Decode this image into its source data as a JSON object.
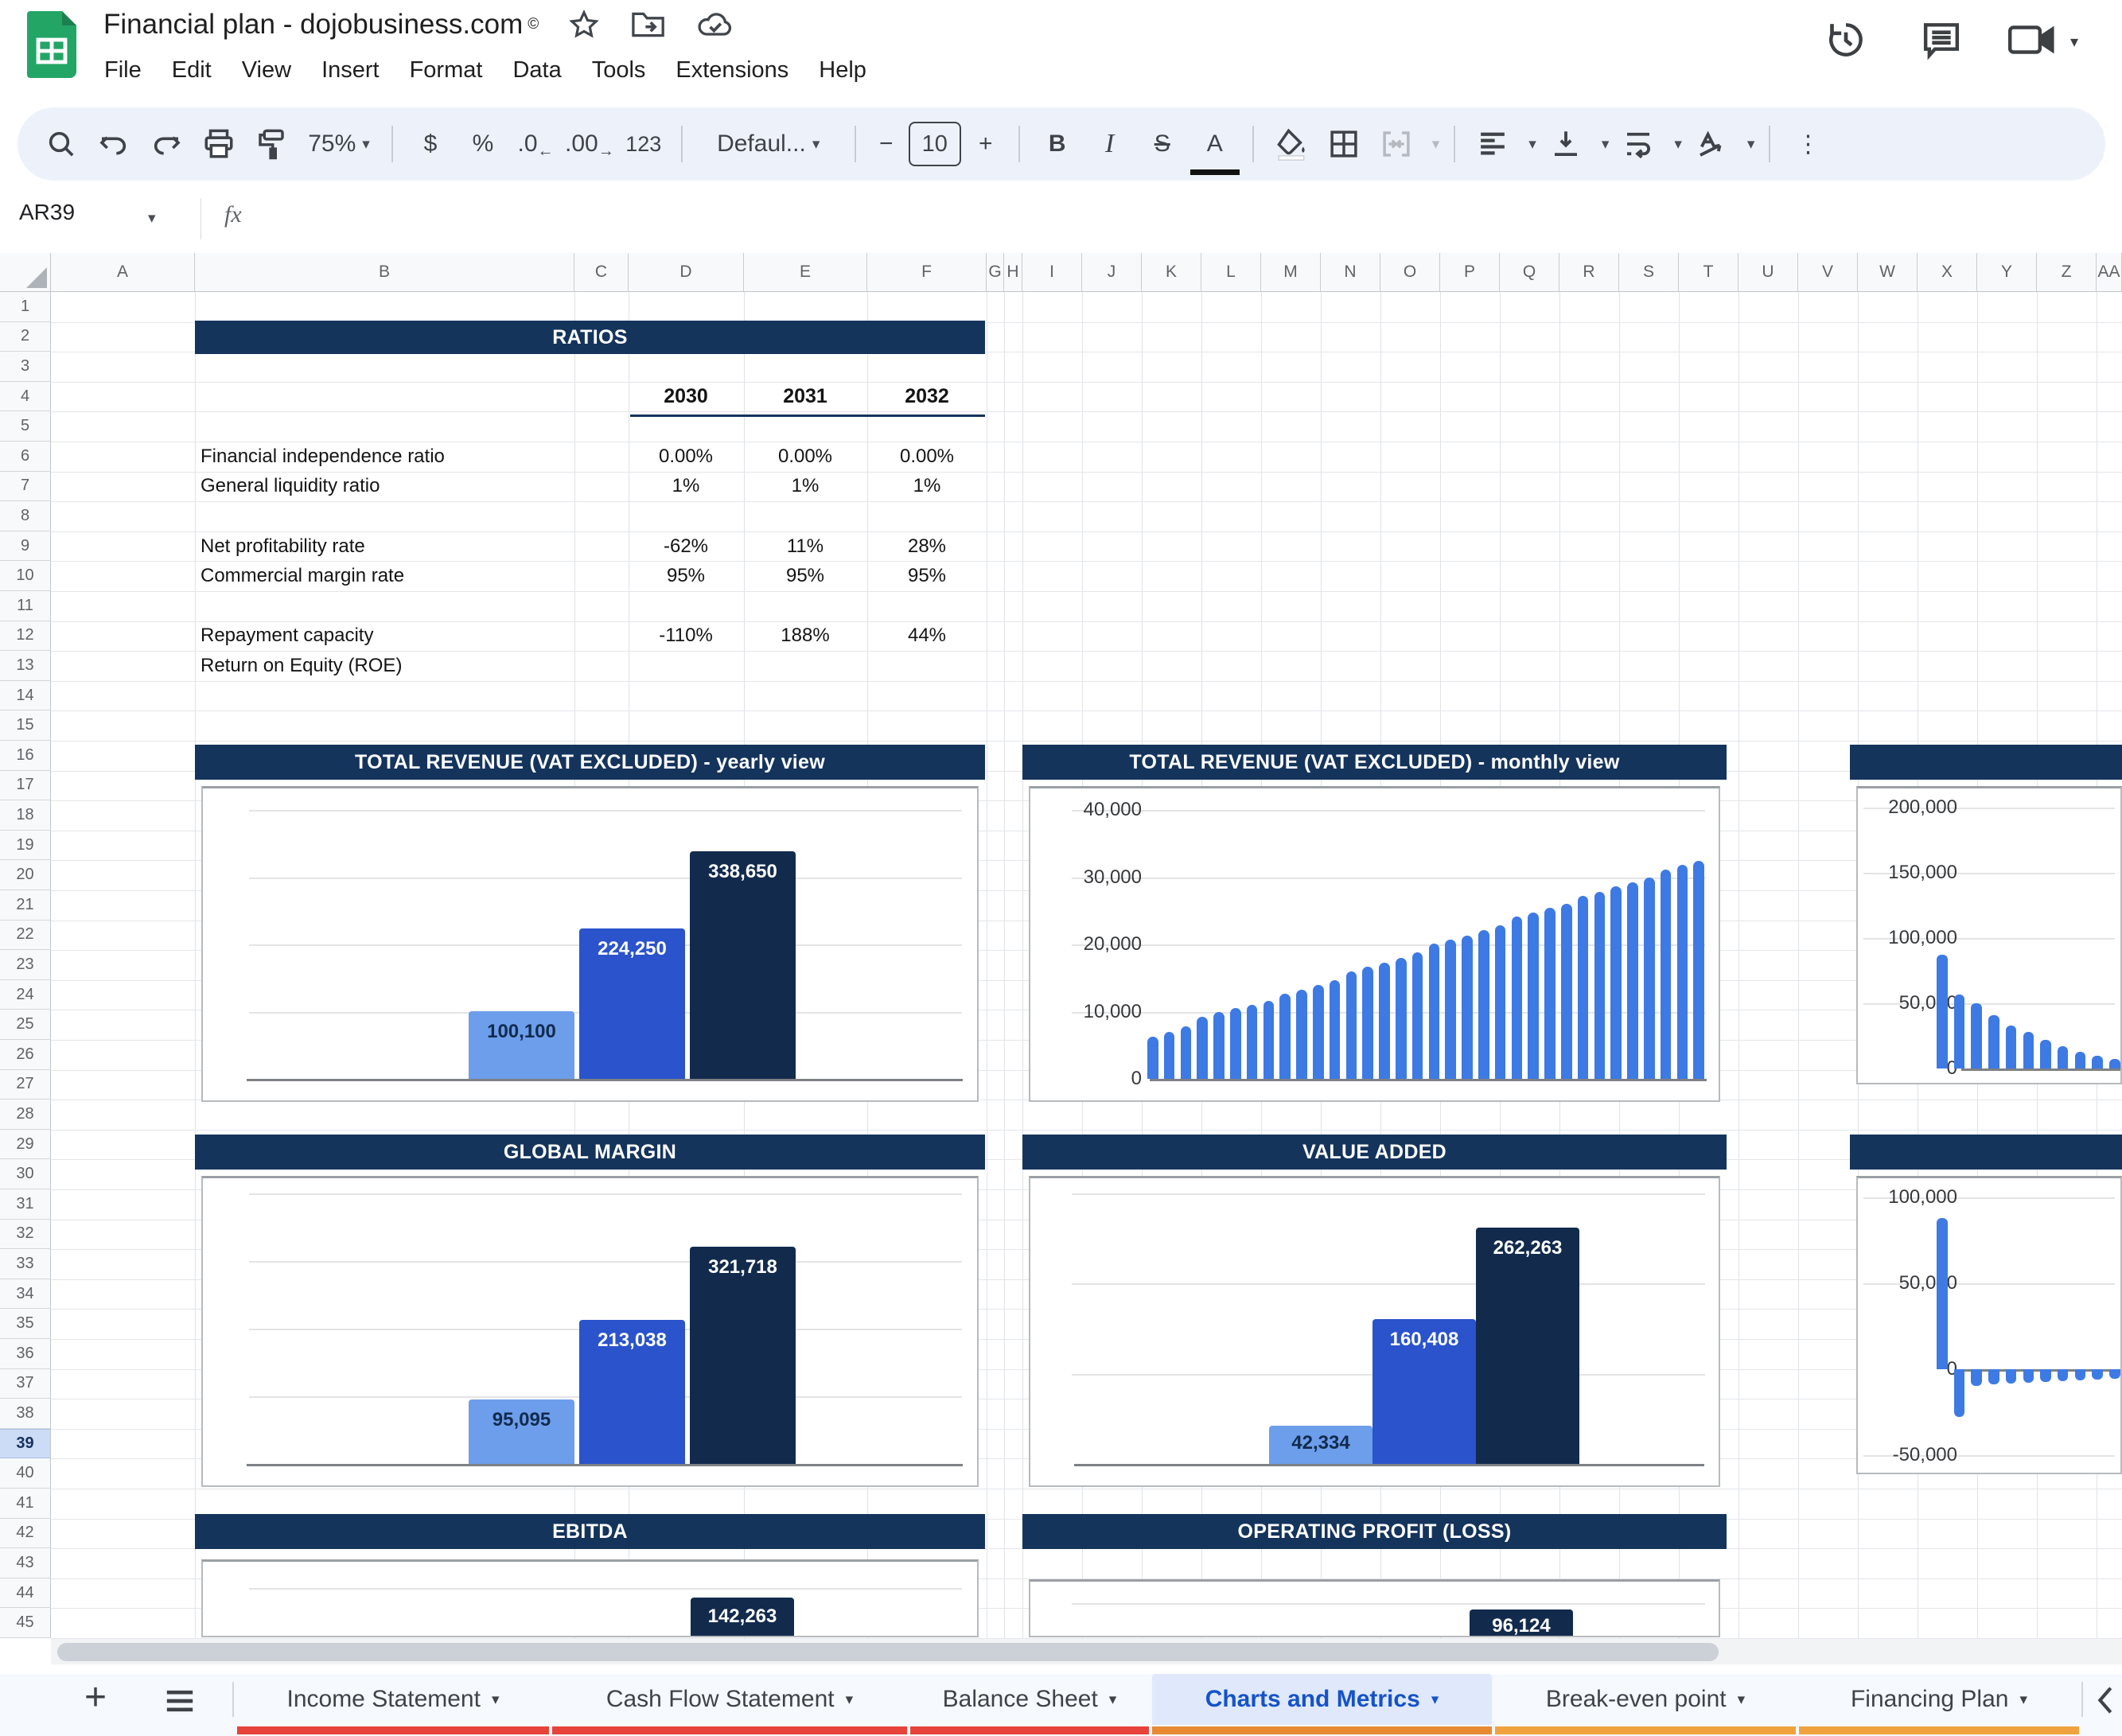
{
  "titlebar": {
    "title": "Financial plan - dojobusiness.com",
    "copyright": "©",
    "menus": [
      "File",
      "Edit",
      "View",
      "Insert",
      "Format",
      "Data",
      "Tools",
      "Extensions",
      "Help"
    ]
  },
  "toolbar": {
    "zoom": "75%",
    "currency": "$",
    "percent": "%",
    "decrease_decimal": ".0",
    "increase_decimal": ".00",
    "format_123": "123",
    "font": "Defaul...",
    "font_size": "10",
    "minus": "−",
    "plus": "+",
    "bold": "B",
    "italic": "I",
    "strikethrough": "S",
    "text_color": "A",
    "fill_color": "A",
    "more": "⋮"
  },
  "formula_bar": {
    "name_box": "AR39",
    "fx": "fx"
  },
  "grid": {
    "columns": [
      "A",
      "B",
      "C",
      "D",
      "E",
      "F",
      "G",
      "H",
      "I",
      "J",
      "K",
      "L",
      "M",
      "N",
      "O",
      "P",
      "Q",
      "R",
      "S",
      "T",
      "U",
      "V",
      "W",
      "X",
      "Y",
      "Z",
      "AA"
    ],
    "row_count": 45,
    "selected_row": 39
  },
  "ratios": {
    "title": "RATIOS",
    "years": [
      "2030",
      "2031",
      "2032"
    ],
    "rows": [
      {
        "label": "Financial independence ratio",
        "values": [
          "0.00%",
          "0.00%",
          "0.00%"
        ],
        "sheet_row": 6
      },
      {
        "label": "General liquidity ratio",
        "values": [
          "1%",
          "1%",
          "1%"
        ],
        "sheet_row": 7
      },
      {
        "label": "Net profitability rate",
        "values": [
          "-62%",
          "11%",
          "28%"
        ],
        "sheet_row": 9
      },
      {
        "label": "Commercial margin rate",
        "values": [
          "95%",
          "95%",
          "95%"
        ],
        "sheet_row": 10
      },
      {
        "label": "Repayment capacity",
        "values": [
          "-110%",
          "188%",
          "44%"
        ],
        "sheet_row": 12
      },
      {
        "label": "Return on Equity (ROE)",
        "values": [
          "",
          "",
          ""
        ],
        "sheet_row": 13
      }
    ]
  },
  "chart_data": [
    {
      "id": "revenue_yearly",
      "type": "bar",
      "title": "TOTAL REVENUE (VAT EXCLUDED) - yearly view",
      "values": [
        100100,
        224250,
        338650
      ],
      "labels": [
        "100,100",
        "224,250",
        "338,650"
      ],
      "bar_colors": [
        "light",
        "mid",
        "dark"
      ],
      "label_colors": [
        "dark",
        "white",
        "white"
      ],
      "ylim": [
        0,
        400000
      ],
      "grid_step": 100000,
      "yticks": []
    },
    {
      "id": "revenue_monthly",
      "type": "bar",
      "title": "TOTAL REVENUE (VAT EXCLUDED) - monthly view",
      "yticks": [
        "40,000",
        "30,000",
        "20,000",
        "10,000",
        "0"
      ],
      "ylim": [
        0,
        40000
      ],
      "values": [
        6300,
        7000,
        7800,
        9200,
        9900,
        10500,
        11000,
        11600,
        12700,
        13300,
        14000,
        14700,
        16000,
        16700,
        17300,
        18000,
        18800,
        20100,
        20700,
        21300,
        22100,
        22800,
        24100,
        24700,
        25400,
        26000,
        27200,
        27800,
        28600,
        29200,
        29900,
        31100,
        31800,
        32400
      ]
    },
    {
      "id": "chart_right_top",
      "type": "bar",
      "title": "",
      "yticks": [
        "200,000",
        "150,000",
        "100,000",
        "50,000",
        "0"
      ],
      "ylim": [
        0,
        200000
      ],
      "values": [
        87000,
        57000,
        50000,
        41000,
        33000,
        28000,
        22000,
        17000,
        13000,
        10000,
        7500,
        6000,
        5000,
        4500
      ]
    },
    {
      "id": "global_margin",
      "type": "bar",
      "title": "GLOBAL MARGIN",
      "values": [
        95095,
        213038,
        321718
      ],
      "labels": [
        "95,095",
        "213,038",
        "321,718"
      ],
      "bar_colors": [
        "light",
        "mid",
        "dark"
      ],
      "label_colors": [
        "dark",
        "white",
        "white"
      ],
      "ylim": [
        0,
        400000
      ],
      "grid_step": 100000,
      "yticks": []
    },
    {
      "id": "value_added",
      "type": "bar",
      "title": "VALUE ADDED",
      "values": [
        42334,
        160408,
        262263
      ],
      "labels": [
        "42,334",
        "160,408",
        "262,263"
      ],
      "bar_colors": [
        "light",
        "mid",
        "dark"
      ],
      "label_colors": [
        "dark",
        "white",
        "white"
      ],
      "ylim": [
        0,
        300000
      ],
      "grid_step": 100000,
      "yticks": []
    },
    {
      "id": "chart_right_bottom",
      "type": "bar",
      "title": "",
      "yticks": [
        "100,000",
        "50,000",
        "0",
        "-50,000"
      ],
      "ylim": [
        -50000,
        100000
      ],
      "values": [
        88000,
        -28000,
        -9500,
        -9000,
        -8500,
        -8000,
        -7500,
        -7000,
        -6500,
        -6000,
        -5500,
        -5200,
        -4800,
        -4500
      ]
    },
    {
      "id": "ebitda",
      "type": "bar",
      "title": "EBITDA",
      "visible_bar_label": "142,263",
      "visible_bar_value": 142263
    },
    {
      "id": "operating_profit",
      "type": "bar",
      "title": "OPERATING PROFIT (LOSS)",
      "visible_bar_label": "96,124",
      "visible_bar_value": 96124
    }
  ],
  "sheet_tabs": {
    "add": "+",
    "back": "❮",
    "tabs": [
      {
        "label": "Income Statement",
        "active": false,
        "underline": "red"
      },
      {
        "label": "Cash Flow Statement",
        "active": false,
        "underline": "red"
      },
      {
        "label": "Balance Sheet",
        "active": false,
        "underline": "red"
      },
      {
        "label": "Charts and Metrics",
        "active": true,
        "underline": "orange_dark"
      },
      {
        "label": "Break-even point",
        "active": false,
        "underline": "orange"
      },
      {
        "label": "Financing Plan",
        "active": false,
        "underline": "orange"
      }
    ]
  },
  "colors": {
    "header_navy": "#14345c",
    "bar_light": "#6d9eeb",
    "bar_mid": "#2a53cc",
    "bar_dark": "#122b4d",
    "bar_monthly": "#3d7ae4",
    "tab_red": "#e8433a",
    "tab_orange_dark": "#e78a33",
    "tab_orange": "#f0a23f",
    "active_tab_text": "#1652c9",
    "selected_row_bg": "#cddcf6"
  }
}
